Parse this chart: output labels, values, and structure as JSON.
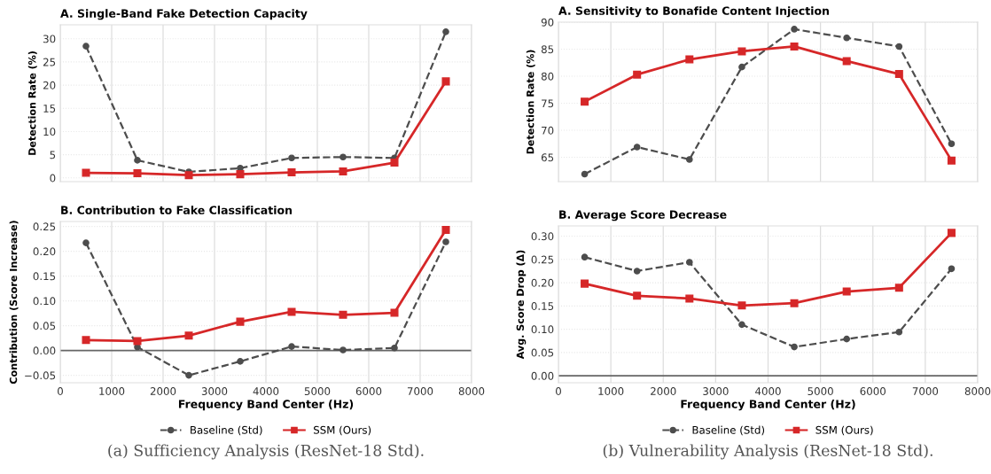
{
  "chart_data": [
    {
      "type": "line",
      "title": "A. Single-Band Fake Detection Capacity",
      "ylabel": "Detection Rate (%)",
      "x": [
        500,
        1500,
        2500,
        3500,
        4500,
        5500,
        6500,
        7500
      ],
      "xlim": [
        0,
        8000
      ],
      "xticks": [
        0,
        1000,
        2000,
        3000,
        4000,
        5000,
        6000,
        7000,
        8000
      ],
      "ylim": [
        -0.8,
        33
      ],
      "yticks": [
        0,
        5,
        10,
        15,
        20,
        25,
        30
      ],
      "tick_labels": "y",
      "grid": true,
      "legend": "bottom",
      "series": [
        {
          "name": "Baseline (Std)",
          "color": "#4d4d4d",
          "marker": "circle",
          "line_style": "dashed",
          "values": [
            28.4,
            3.8,
            1.3,
            2.1,
            4.3,
            4.5,
            4.3,
            31.5
          ]
        },
        {
          "name": "SSM (Ours)",
          "color": "#d62728",
          "marker": "square",
          "line_style": "solid",
          "values": [
            1.1,
            1.0,
            0.6,
            0.8,
            1.2,
            1.4,
            3.3,
            20.8
          ]
        }
      ]
    },
    {
      "type": "line",
      "title": "A. Sensitivity to Bonafide Content Injection",
      "ylabel": "Detection Rate (%)",
      "x": [
        500,
        1500,
        2500,
        3500,
        4500,
        5500,
        6500,
        7500
      ],
      "xlim": [
        0,
        8000
      ],
      "xticks": [
        0,
        1000,
        2000,
        3000,
        4000,
        5000,
        6000,
        7000,
        8000
      ],
      "ylim": [
        60.5,
        90
      ],
      "yticks": [
        65,
        70,
        75,
        80,
        85,
        90
      ],
      "tick_labels": "y",
      "grid": true,
      "legend": "bottom",
      "series": [
        {
          "name": "Baseline (Std)",
          "color": "#4d4d4d",
          "marker": "circle",
          "line_style": "dashed",
          "values": [
            61.9,
            66.9,
            64.6,
            81.7,
            88.7,
            87.1,
            85.5,
            67.5
          ]
        },
        {
          "name": "SSM (Ours)",
          "color": "#d62728",
          "marker": "square",
          "line_style": "solid",
          "values": [
            75.3,
            80.3,
            83.1,
            84.6,
            85.5,
            82.8,
            80.4,
            64.4
          ]
        }
      ]
    },
    {
      "type": "line",
      "title": "B. Contribution to Fake Classification",
      "xlabel": "Frequency Band Center (Hz)",
      "ylabel": "Contribution (Score Increase)",
      "x": [
        500,
        1500,
        2500,
        3500,
        4500,
        5500,
        6500,
        7500
      ],
      "xlim": [
        0,
        8000
      ],
      "xticks": [
        0,
        1000,
        2000,
        3000,
        4000,
        5000,
        6000,
        7000,
        8000
      ],
      "ylim": [
        -0.065,
        0.26
      ],
      "yticks": [
        {
          "value": -0.05,
          "label": "−0.05"
        },
        {
          "value": 0,
          "label": "0.00"
        },
        {
          "value": 0.05,
          "label": "0.05"
        },
        {
          "value": 0.1,
          "label": "0.10"
        },
        {
          "value": 0.15,
          "label": "0.15"
        },
        {
          "value": 0.2,
          "label": "0.20"
        },
        {
          "value": 0.25,
          "label": "0.25"
        }
      ],
      "grid": true,
      "ref_lines": [
        {
          "axis": "y",
          "value": 0,
          "color": "#666666"
        }
      ],
      "annotations": [
        "(a) Sufficiency Analysis (ResNet-18 Std)."
      ],
      "series": [
        {
          "color": "#4d4d4d",
          "marker": "circle",
          "line_style": "dashed",
          "values": [
            0.217,
            0.007,
            -0.05,
            -0.022,
            0.008,
            0.001,
            0.005,
            0.219
          ]
        },
        {
          "color": "#d62728",
          "marker": "square",
          "line_style": "solid",
          "values": [
            0.021,
            0.019,
            0.03,
            0.058,
            0.078,
            0.072,
            0.076,
            0.243
          ]
        }
      ]
    },
    {
      "type": "line",
      "title": "B. Average Score Decrease",
      "xlabel": "Frequency Band Center (Hz)",
      "ylabel": "Avg. Score Drop (Δ)",
      "x": [
        500,
        1500,
        2500,
        3500,
        4500,
        5500,
        6500,
        7500
      ],
      "xlim": [
        0,
        8000
      ],
      "xticks": [
        0,
        1000,
        2000,
        3000,
        4000,
        5000,
        6000,
        7000,
        8000
      ],
      "ylim": [
        -0.015,
        0.322
      ],
      "yticks": [
        {
          "value": 0,
          "label": "0.00"
        },
        {
          "value": 0.05,
          "label": "0.05"
        },
        {
          "value": 0.1,
          "label": "0.10"
        },
        {
          "value": 0.15,
          "label": "0.15"
        },
        {
          "value": 0.2,
          "label": "0.20"
        },
        {
          "value": 0.25,
          "label": "0.25"
        },
        {
          "value": 0.3,
          "label": "0.30"
        }
      ],
      "grid": true,
      "ref_lines": [
        {
          "axis": "y",
          "value": 0,
          "color": "#666666"
        }
      ],
      "annotations": [
        "(b) Vulnerability Analysis (ResNet-18 Std)."
      ],
      "series": [
        {
          "color": "#4d4d4d",
          "marker": "circle",
          "line_style": "dashed",
          "values": [
            0.255,
            0.225,
            0.244,
            0.11,
            0.062,
            0.079,
            0.094,
            0.23
          ]
        },
        {
          "color": "#d62728",
          "marker": "square",
          "line_style": "solid",
          "values": [
            0.198,
            0.172,
            0.166,
            0.151,
            0.156,
            0.181,
            0.189,
            0.307
          ]
        }
      ]
    }
  ]
}
